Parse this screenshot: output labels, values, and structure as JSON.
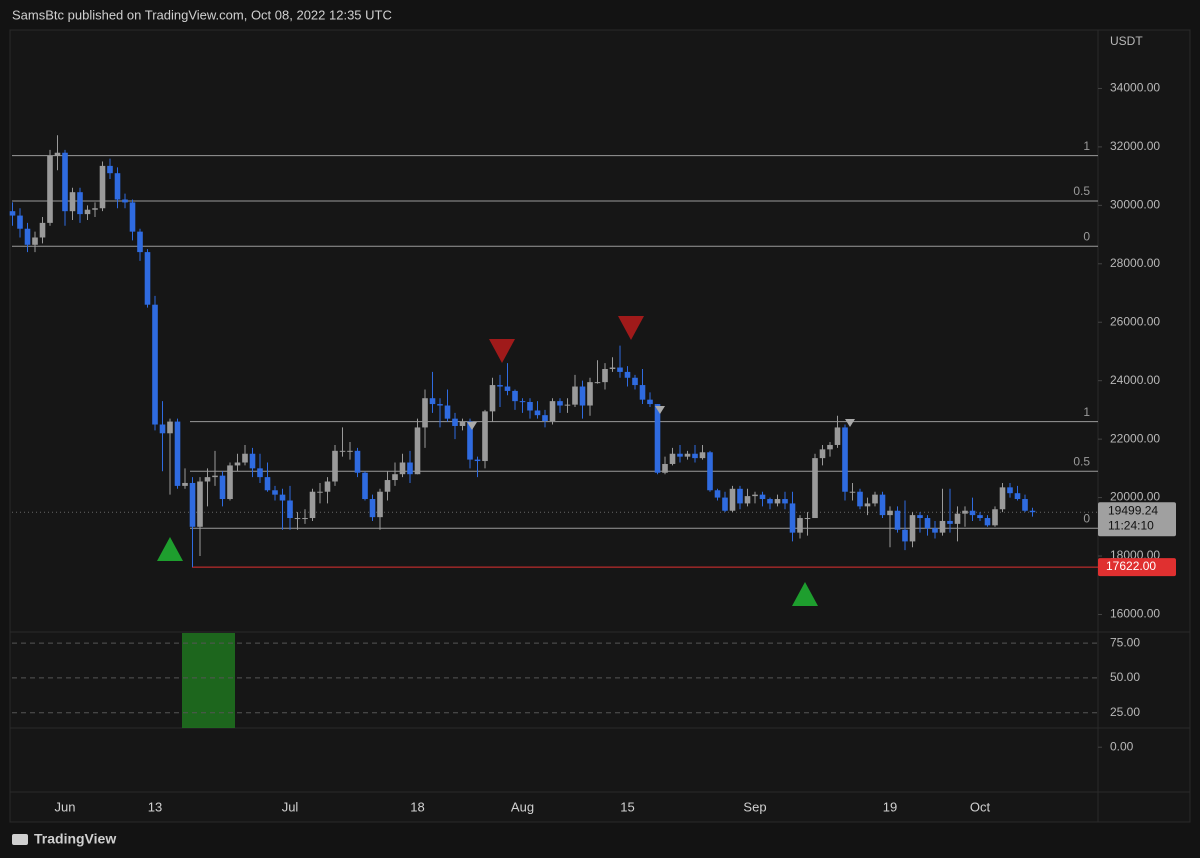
{
  "header": "SamsBtc published on TradingView.com, Oct 08, 2022 12:35 UTC",
  "footer": "TradingView",
  "chart_data": {
    "type": "candlestick",
    "currency": "USDT",
    "up_color": "#9a9a9a",
    "down_color": "#2f6be0",
    "categories": [
      null,
      null,
      null,
      null,
      null,
      null,
      null,
      "Jun",
      null,
      null,
      null,
      null,
      null,
      null,
      null,
      null,
      null,
      null,
      null,
      "13",
      null,
      null,
      null,
      null,
      null,
      null,
      null,
      null,
      null,
      null,
      null,
      null,
      null,
      null,
      null,
      null,
      null,
      "Jul",
      null,
      null,
      null,
      null,
      null,
      null,
      null,
      null,
      null,
      null,
      null,
      null,
      null,
      null,
      null,
      null,
      "18",
      null,
      null,
      null,
      null,
      null,
      null,
      null,
      null,
      null,
      null,
      null,
      null,
      null,
      "Aug",
      null,
      null,
      null,
      null,
      null,
      null,
      null,
      null,
      null,
      null,
      null,
      null,
      null,
      "15",
      null,
      null,
      null,
      null,
      null,
      null,
      null,
      null,
      null,
      null,
      null,
      null,
      null,
      null,
      null,
      null,
      "Sep",
      null,
      null,
      null,
      null,
      null,
      null,
      null,
      null,
      null,
      null,
      null,
      null,
      null,
      null,
      null,
      null,
      null,
      "19",
      null,
      null,
      null,
      null,
      null,
      null,
      null,
      null,
      null,
      null,
      null,
      "Oct",
      null,
      null,
      null,
      null,
      null,
      null,
      null
    ],
    "open": [
      29800,
      29650,
      29200,
      28650,
      28900,
      29400,
      31700,
      31800,
      29800,
      30450,
      29700,
      29850,
      29900,
      31350,
      31100,
      30200,
      30100,
      29100,
      28400,
      26600,
      22500,
      22200,
      22600,
      20400,
      20500,
      19000,
      20550,
      20700,
      20750,
      19950,
      21100,
      21200,
      21500,
      21000,
      20700,
      20250,
      20100,
      19900,
      19300,
      19300,
      19300,
      20200,
      20200,
      20550,
      21600,
      21600,
      21600,
      20850,
      19950,
      19330,
      20200,
      20600,
      20800,
      21200,
      20800,
      22400,
      23400,
      23200,
      23150,
      22700,
      22450,
      22600,
      21300,
      21250,
      22950,
      23850,
      23800,
      23650,
      23300,
      23270,
      22980,
      22820,
      22620,
      23300,
      23150,
      23180,
      23800,
      23150,
      23950,
      23950,
      24400,
      24450,
      24300,
      24100,
      23850,
      23350,
      23200,
      20850,
      21150,
      21500,
      21400,
      21500,
      21350,
      21550,
      20250,
      20000,
      19550,
      20300,
      19800,
      20050,
      20100,
      19950,
      19800,
      19950,
      19800,
      18800,
      19300,
      19300,
      21350,
      21650,
      21800,
      22400,
      20200,
      20200,
      19700,
      19800,
      20100,
      19400,
      19550,
      18900,
      18500,
      19400,
      19300,
      18950,
      18800,
      19200,
      19100,
      19450,
      19550,
      19400,
      19300,
      19050,
      19600,
      20350,
      20150,
      19950,
      19550
    ],
    "high": [
      30100,
      29900,
      29400,
      29100,
      29600,
      31900,
      32400,
      31900,
      30600,
      30600,
      30000,
      30100,
      31500,
      31600,
      31300,
      30400,
      30200,
      29200,
      28500,
      26900,
      23300,
      22700,
      22700,
      21000,
      20700,
      20700,
      21000,
      21600,
      20900,
      21200,
      21500,
      21800,
      21700,
      21500,
      21200,
      20400,
      20300,
      20400,
      19500,
      19600,
      20300,
      20500,
      20700,
      21800,
      22400,
      21900,
      21700,
      20900,
      20100,
      20300,
      20900,
      21200,
      21500,
      21600,
      22700,
      23700,
      24300,
      23400,
      23700,
      22900,
      22700,
      22700,
      21400,
      23000,
      24100,
      24200,
      24600,
      23700,
      23400,
      23400,
      23300,
      23000,
      23400,
      23400,
      23400,
      24200,
      24000,
      24100,
      24700,
      24600,
      24800,
      25200,
      24500,
      24200,
      24400,
      23600,
      23200,
      21400,
      21700,
      21800,
      21600,
      21800,
      21800,
      21600,
      20300,
      20200,
      20400,
      20400,
      20300,
      20200,
      20200,
      20000,
      20100,
      20200,
      20200,
      19400,
      19500,
      21500,
      21800,
      21900,
      22800,
      22500,
      20500,
      20300,
      20000,
      20200,
      20200,
      19700,
      19700,
      19900,
      19500,
      19500,
      19400,
      19200,
      20300,
      20300,
      19700,
      19700,
      20000,
      19500,
      19400,
      19700,
      20500,
      20500,
      20400,
      20100,
      19650
    ],
    "low": [
      29300,
      28900,
      28400,
      28400,
      28700,
      29300,
      31200,
      29300,
      29500,
      29400,
      29500,
      29600,
      29800,
      30900,
      29900,
      29900,
      28800,
      28100,
      26500,
      22300,
      20900,
      20100,
      20300,
      20300,
      17622,
      18000,
      19700,
      20400,
      19700,
      19900,
      20900,
      21100,
      20700,
      20500,
      20200,
      19900,
      18900,
      18900,
      18900,
      19100,
      19200,
      19800,
      19800,
      20400,
      21400,
      21300,
      20700,
      19900,
      19200,
      18900,
      19900,
      20400,
      20700,
      20500,
      20800,
      21700,
      22900,
      22400,
      22600,
      22000,
      22300,
      21000,
      20700,
      21000,
      22600,
      23100,
      23500,
      23000,
      22900,
      22700,
      22700,
      22400,
      22500,
      22900,
      22900,
      23100,
      22700,
      22800,
      23900,
      23700,
      24300,
      24100,
      23800,
      23700,
      23200,
      23100,
      20800,
      20800,
      21100,
      21200,
      21300,
      21200,
      21300,
      20200,
      19900,
      19500,
      19500,
      19600,
      19700,
      19800,
      19700,
      19600,
      19700,
      19600,
      18500,
      18600,
      18700,
      19300,
      21100,
      21400,
      21700,
      19900,
      19900,
      19600,
      19400,
      19700,
      19300,
      18300,
      18800,
      18200,
      18300,
      18800,
      18700,
      18600,
      18700,
      18800,
      18500,
      19000,
      19200,
      19200,
      19000,
      19000,
      19500,
      20000,
      19900,
      19500,
      19350
    ],
    "close": [
      29650,
      29200,
      28650,
      28900,
      29400,
      31700,
      31800,
      29800,
      30450,
      29700,
      29850,
      29900,
      31350,
      31100,
      30200,
      30100,
      29100,
      28400,
      26600,
      22500,
      22200,
      22600,
      20400,
      20500,
      19000,
      20550,
      20700,
      20750,
      19950,
      21100,
      21200,
      21500,
      21000,
      20700,
      20250,
      20100,
      19900,
      19300,
      19300,
      19300,
      20200,
      20200,
      20550,
      21600,
      21600,
      21600,
      20850,
      19950,
      19330,
      20200,
      20600,
      20800,
      21200,
      20800,
      22400,
      23400,
      23200,
      23150,
      22700,
      22450,
      22600,
      21300,
      21250,
      22950,
      23850,
      23800,
      23650,
      23300,
      23270,
      22980,
      22820,
      22620,
      23300,
      23150,
      23180,
      23800,
      23150,
      23950,
      23950,
      24400,
      24450,
      24300,
      24100,
      23850,
      23350,
      23200,
      20850,
      21150,
      21500,
      21400,
      21500,
      21350,
      21550,
      20250,
      20000,
      19550,
      20300,
      19800,
      20050,
      20100,
      19950,
      19800,
      19950,
      19800,
      18800,
      19300,
      19300,
      21350,
      21650,
      21800,
      22400,
      20200,
      20200,
      19700,
      19800,
      20100,
      19400,
      19550,
      18900,
      18500,
      19400,
      19300,
      18950,
      18800,
      19200,
      19100,
      19450,
      19550,
      19400,
      19300,
      19050,
      19600,
      20350,
      20150,
      19950,
      19550,
      19499.24
    ],
    "ylim": [
      15400,
      36000
    ],
    "yticks": [
      {
        "value": 16000,
        "label": "16000.00"
      },
      {
        "value": 18000,
        "label": "18000.00"
      },
      {
        "value": 20000,
        "label": "20000.00"
      },
      {
        "value": 22000,
        "label": "22000.00"
      },
      {
        "value": 24000,
        "label": "24000.00"
      },
      {
        "value": 26000,
        "label": "26000.00"
      },
      {
        "value": 28000,
        "label": "28000.00"
      },
      {
        "value": 30000,
        "label": "30000.00"
      },
      {
        "value": 32000,
        "label": "32000.00"
      },
      {
        "value": 34000,
        "label": "34000.00"
      }
    ],
    "levels": [
      {
        "value": 31700,
        "label": "1"
      },
      {
        "value": 30150,
        "label": "0.5"
      },
      {
        "value": 28600,
        "label": "0"
      },
      {
        "value": 22600,
        "label": "1"
      },
      {
        "value": 20900,
        "label": "0.5"
      },
      {
        "value": 18950,
        "label": "0"
      }
    ],
    "support": {
      "value": 17622,
      "label": "17622.00",
      "color": "#e03030"
    },
    "last_price": {
      "value": 19499.24,
      "label": "19499.24",
      "countdown": "11:24:10"
    },
    "rsi_panel": {
      "ylim": [
        14,
        83
      ],
      "yticks": [
        {
          "value": 25,
          "label": "25.00"
        },
        {
          "value": 50,
          "label": "50.00"
        },
        {
          "value": 75,
          "label": "75.00"
        }
      ]
    },
    "macd_panel": {
      "ylim": [
        -1.4,
        0.6
      ],
      "yticks": [
        {
          "value": 0,
          "label": "0.00"
        }
      ]
    }
  }
}
